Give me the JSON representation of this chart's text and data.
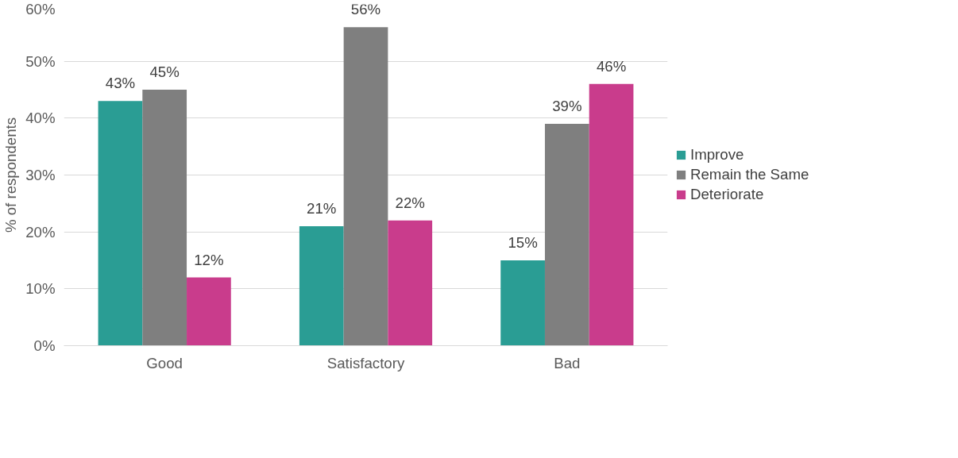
{
  "chart_data": {
    "type": "bar",
    "ylabel": "% of respondents",
    "categories": [
      "Good",
      "Satisfactory",
      "Bad"
    ],
    "series": [
      {
        "name": "Improve",
        "color": "#2a9d94",
        "values": [
          43,
          21,
          15
        ],
        "value_labels": [
          "43%",
          "21%",
          "15%"
        ]
      },
      {
        "name": "Remain the Same",
        "color": "#7f7f7f",
        "values": [
          45,
          56,
          39
        ],
        "value_labels": [
          "45%",
          "56%",
          "39%"
        ]
      },
      {
        "name": "Deteriorate",
        "color": "#c93c8c",
        "values": [
          12,
          22,
          46
        ],
        "value_labels": [
          "12%",
          "22%",
          "46%"
        ]
      }
    ],
    "ylim": [
      0,
      60
    ],
    "yticks": [
      {
        "value": 0,
        "label": "0%"
      },
      {
        "value": 10,
        "label": "10%"
      },
      {
        "value": 20,
        "label": "20%"
      },
      {
        "value": 30,
        "label": "30%"
      },
      {
        "value": 40,
        "label": "40%"
      },
      {
        "value": 50,
        "label": "50%"
      },
      {
        "value": 60,
        "label": "60%"
      }
    ],
    "grid": "y",
    "legend": "right"
  }
}
